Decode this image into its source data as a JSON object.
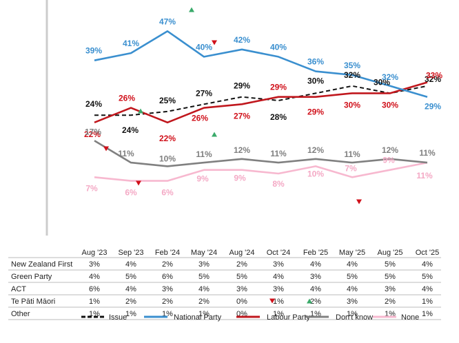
{
  "chart_data": {
    "type": "line",
    "categories": [
      "Aug '23",
      "Sep '23",
      "Feb '24",
      "May '24",
      "Aug '24",
      "Oct '24",
      "Feb '25",
      "May '25",
      "Aug '25",
      "Oct  '25"
    ],
    "ylim": [
      0,
      50
    ],
    "grid": false,
    "legend": "bottom",
    "series": [
      {
        "name": "Issue",
        "color": "#111111",
        "dash": true,
        "values": [
          24,
          24,
          25,
          27,
          29,
          28,
          30,
          32,
          30,
          32
        ],
        "labels": [
          "24%",
          "24%",
          "25%",
          "27%",
          "29%",
          "28%",
          "30%",
          "32%",
          "30%",
          "32%"
        ]
      },
      {
        "name": "National Party",
        "color": "#3a8fcf",
        "values": [
          39,
          41,
          47,
          40,
          42,
          40,
          36,
          35,
          32,
          29
        ],
        "labels": [
          "39%",
          "41%",
          "47%",
          "40%",
          "42%",
          "40%",
          "36%",
          "35%",
          "32%",
          "29%"
        ]
      },
      {
        "name": "Labour Party",
        "color": "#c0171d",
        "values": [
          22,
          26,
          22,
          26,
          27,
          29,
          29,
          30,
          30,
          33
        ],
        "labels": [
          "22%",
          "26%",
          "22%",
          "26%",
          "27%",
          "29%",
          "29%",
          "30%",
          "30%",
          "33%"
        ]
      },
      {
        "name": "Don't know",
        "color": "#808080",
        "values": [
          17,
          11,
          10,
          11,
          12,
          11,
          12,
          11,
          12,
          11
        ],
        "labels": [
          "17%",
          "11%",
          "10%",
          "11%",
          "12%",
          "11%",
          "12%",
          "11%",
          "12%",
          "11%"
        ]
      },
      {
        "name": "None",
        "color": "#f7b8cf",
        "values": [
          7,
          6,
          6,
          9,
          9,
          8,
          10,
          7,
          9,
          11
        ],
        "labels": [
          "7%",
          "6%",
          "6%",
          "9%",
          "9%",
          "8%",
          "10%",
          "7%",
          "9%",
          "11%"
        ]
      }
    ],
    "change_markers": [
      {
        "series": "National Party",
        "index": 2,
        "direction": "up"
      },
      {
        "series": "National Party",
        "index": 3,
        "direction": "down"
      },
      {
        "series": "Labour Party",
        "index": 0,
        "direction": "down"
      },
      {
        "series": "Labour Party",
        "index": 1,
        "direction": "up"
      },
      {
        "series": "Labour Party",
        "index": 3,
        "direction": "up"
      },
      {
        "series": "Don't know",
        "index": 1,
        "direction": "down"
      },
      {
        "series": "None",
        "index": 7,
        "direction": "down"
      }
    ],
    "table": {
      "columns": [
        "Aug '23",
        "Sep '23",
        "Feb '24",
        "May '24",
        "Aug '24",
        "Oct '24",
        "Feb '25",
        "May '25",
        "Aug '25",
        "Oct  '25"
      ],
      "rows": [
        {
          "label": "New Zealand First",
          "values": [
            "3%",
            "4%",
            "2%",
            "3%",
            "2%",
            "3%",
            "4%",
            "4%",
            "5%",
            "4%"
          ]
        },
        {
          "label": "Green Party",
          "values": [
            "4%",
            "5%",
            "6%",
            "5%",
            "5%",
            "4%",
            "3%",
            "5%",
            "5%",
            "5%"
          ]
        },
        {
          "label": "ACT",
          "values": [
            "6%",
            "4%",
            "3%",
            "4%",
            "3%",
            "3%",
            "4%",
            "4%",
            "3%",
            "4%"
          ]
        },
        {
          "label": "Te Pāti Māori",
          "values": [
            "1%",
            "2%",
            "2%",
            "2%",
            "0%",
            "1%",
            "2%",
            "3%",
            "2%",
            "1%"
          ]
        },
        {
          "label": "Other",
          "values": [
            "1%",
            "1%",
            "1%",
            "1%",
            "0%",
            "1%",
            "1%",
            "1%",
            "1%",
            "1%"
          ]
        }
      ],
      "cell_markers": [
        {
          "row": 3,
          "col": 5,
          "direction": "down"
        },
        {
          "row": 3,
          "col": 6,
          "direction": "up"
        }
      ]
    },
    "marker_colors": {
      "up": "#3aaa6a",
      "down": "#d0101a"
    }
  }
}
